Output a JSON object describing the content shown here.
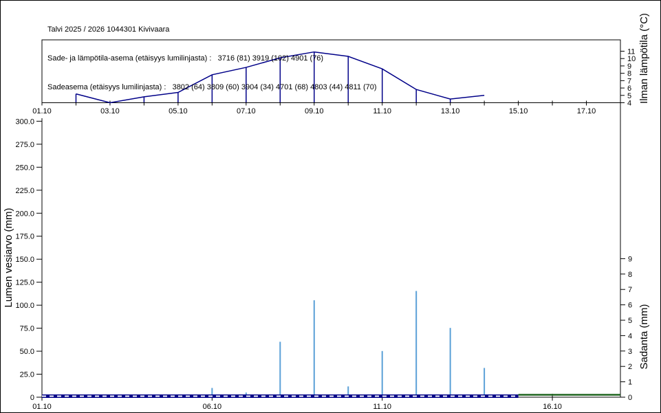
{
  "header": {
    "line1": "Talvi 2025 / 2026 1044301 Kivivaara",
    "line2": "Sade- ja lämpötila-asema (etäisyys lumilinjasta) :   3716 (81) 3919 (102) 4901 (76)",
    "line3": "Sadeasema (etäisyys lumilinjasta) :   3802 (64) 3809 (60) 3904 (34) 4701 (68) 4803 (44) 4811 (70)"
  },
  "colors": {
    "temp_line": "#000088",
    "precip_bar": "#5aa0d7",
    "swe_line": "#000088",
    "swe_dash": "#ffffff",
    "ground_line": "#1e641e",
    "axis": "#000000",
    "text": "#000000",
    "background": "#ffffff"
  },
  "chart_data": [
    {
      "type": "line",
      "name": "air-temperature",
      "ylabel": "Ilman lämpötila (°C)",
      "x_domain_days": [
        1,
        18
      ],
      "x_tick_every_days": 1,
      "x_tick_labels": [
        "01.10",
        "03.10",
        "05.10",
        "07.10",
        "09.10",
        "11.10",
        "13.10",
        "15.10",
        "17.10"
      ],
      "x_label_days": [
        1,
        3,
        5,
        7,
        9,
        11,
        13,
        15,
        17
      ],
      "ylim": [
        4,
        12.5
      ],
      "yticks": [
        4,
        5,
        6,
        7,
        8,
        9,
        10,
        11
      ],
      "grid": false,
      "legend": "none",
      "series": [
        {
          "name": "Ilman lämpötila",
          "dates": [
            "02.10",
            "03.10",
            "04.10",
            "05.10",
            "06.10",
            "07.10",
            "08.10",
            "09.10",
            "10.10",
            "11.10",
            "12.10",
            "13.10",
            "14.10"
          ],
          "days": [
            2,
            3,
            4,
            5,
            6,
            7,
            8,
            9,
            10,
            11,
            12,
            13,
            14
          ],
          "values_c": [
            5.2,
            4.0,
            4.8,
            5.4,
            7.8,
            8.8,
            10.1,
            10.9,
            10.3,
            8.6,
            5.8,
            4.5,
            5.0
          ]
        }
      ],
      "drop_line_days": [
        2,
        4,
        5,
        6,
        7,
        8,
        9,
        10,
        11,
        12,
        13
      ]
    },
    {
      "type": "bar",
      "name": "swe-and-precipitation",
      "ylabel_left": "Lumen vesiarvo (mm)",
      "ylabel_right": "Sadanta (mm)",
      "x_domain_days": [
        1,
        18
      ],
      "x_tick_days": [
        1,
        6,
        11,
        16
      ],
      "x_tick_labels": [
        "01.10",
        "06.10",
        "11.10",
        "16.10"
      ],
      "left_ylim": [
        0,
        300
      ],
      "left_tick_labels": [
        "0",
        "25.0",
        "50.0",
        "75.0",
        "100.0",
        "125.0",
        "150.0",
        "175.0",
        "200.0",
        "225.0",
        "250.0",
        "275.0",
        "300.0"
      ],
      "left_tick_values": [
        0,
        25,
        50,
        75,
        100,
        125,
        150,
        175,
        200,
        225,
        250,
        275,
        300
      ],
      "right_ylim": [
        0,
        9
      ],
      "right_tick_labels": [
        "0",
        "1",
        "2",
        "3",
        "4",
        "5",
        "6",
        "7",
        "8",
        "9"
      ],
      "right_tick_values": [
        0,
        1,
        2,
        3,
        4,
        5,
        6,
        7,
        8,
        9
      ],
      "grid": false,
      "precipitation": {
        "dates": [
          "06.10",
          "07.10",
          "08.10",
          "09.10",
          "10.10",
          "11.10",
          "12.10",
          "13.10",
          "14.10"
        ],
        "days": [
          6,
          7,
          8,
          9,
          10,
          11,
          12,
          13,
          14
        ],
        "values_mm": [
          0.6,
          0.3,
          3.6,
          6.3,
          0.7,
          3.0,
          6.9,
          4.5,
          1.9
        ]
      },
      "snow_water_equivalent": {
        "style": "dashed",
        "day_start": 1,
        "day_end": 15,
        "value_mm": 0
      },
      "ground_segment": {
        "style": "solid",
        "day_start": 15,
        "day_end": 18,
        "value_mm": 0
      }
    }
  ]
}
